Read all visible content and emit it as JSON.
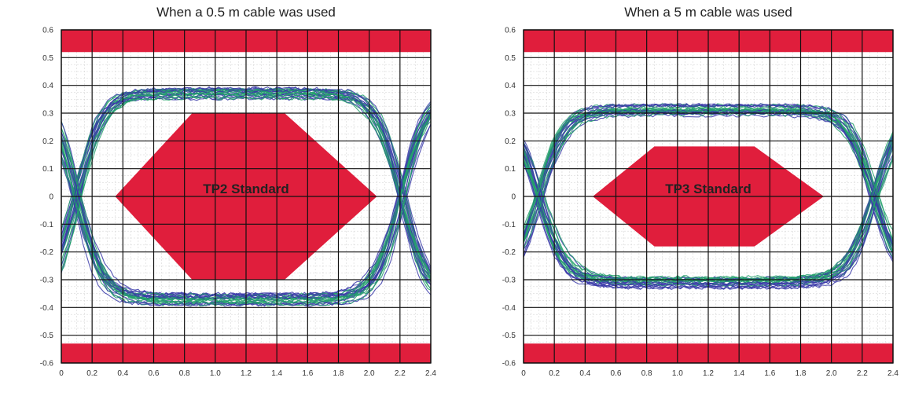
{
  "chart_data": [
    {
      "type": "line",
      "title": "When a 0.5 m cable was used",
      "xlabel": "",
      "ylabel": "",
      "xlim": [
        0,
        2.4
      ],
      "ylim": [
        -0.6,
        0.6
      ],
      "x_ticks": [
        "0",
        "0.2",
        "0.4",
        "0.6",
        "0.8",
        "1.0",
        "1.2",
        "1.4",
        "1.6",
        "1.8",
        "2.0",
        "2.2",
        "2.4"
      ],
      "y_ticks": [
        "0.6",
        "0.5",
        "0.4",
        "0.3",
        "0.2",
        "0.1",
        "0",
        "-0.1",
        "-0.2",
        "-0.3",
        "-0.4",
        "-0.5",
        "-0.6"
      ],
      "grid": true,
      "eye": {
        "high": 0.37,
        "low": -0.37,
        "cross1": 0.1,
        "cross2": 2.22,
        "spread": 0.02
      },
      "mask": {
        "label": "TP2 Standard",
        "points": [
          [
            0.35,
            0
          ],
          [
            0.85,
            0.3
          ],
          [
            1.45,
            0.3
          ],
          [
            2.05,
            0
          ],
          [
            1.45,
            -0.3
          ],
          [
            0.85,
            -0.3
          ]
        ]
      },
      "limit_bands": [
        [
          0.52,
          0.6
        ],
        [
          -0.6,
          -0.53
        ]
      ],
      "colors": {
        "mask": "#e01e3c",
        "trace_a": "#3a3aa8",
        "trace_b": "#22a06b"
      }
    },
    {
      "type": "line",
      "title": "When a 5 m cable was used",
      "xlabel": "",
      "ylabel": "",
      "xlim": [
        0,
        2.4
      ],
      "ylim": [
        -0.6,
        0.6
      ],
      "x_ticks": [
        "0",
        "0.2",
        "0.4",
        "0.6",
        "0.8",
        "1.0",
        "1.2",
        "1.4",
        "1.6",
        "1.8",
        "2.0",
        "2.2",
        "2.4"
      ],
      "y_ticks": [
        "0.6",
        "0.5",
        "0.4",
        "0.3",
        "0.2",
        "0.1",
        "0",
        "-0.1",
        "-0.2",
        "-0.3",
        "-0.4",
        "-0.5",
        "-0.6"
      ],
      "grid": true,
      "eye": {
        "high": 0.31,
        "low": -0.31,
        "cross1": 0.1,
        "cross2": 2.28,
        "spread": 0.02
      },
      "mask": {
        "label": "TP3 Standard",
        "points": [
          [
            0.45,
            0
          ],
          [
            0.85,
            0.18
          ],
          [
            1.5,
            0.18
          ],
          [
            1.95,
            0
          ],
          [
            1.5,
            -0.18
          ],
          [
            0.85,
            -0.18
          ]
        ]
      },
      "limit_bands": [
        [
          0.52,
          0.6
        ],
        [
          -0.6,
          -0.53
        ]
      ],
      "colors": {
        "mask": "#e01e3c",
        "trace_a": "#3a3aa8",
        "trace_b": "#22a06b"
      }
    }
  ]
}
